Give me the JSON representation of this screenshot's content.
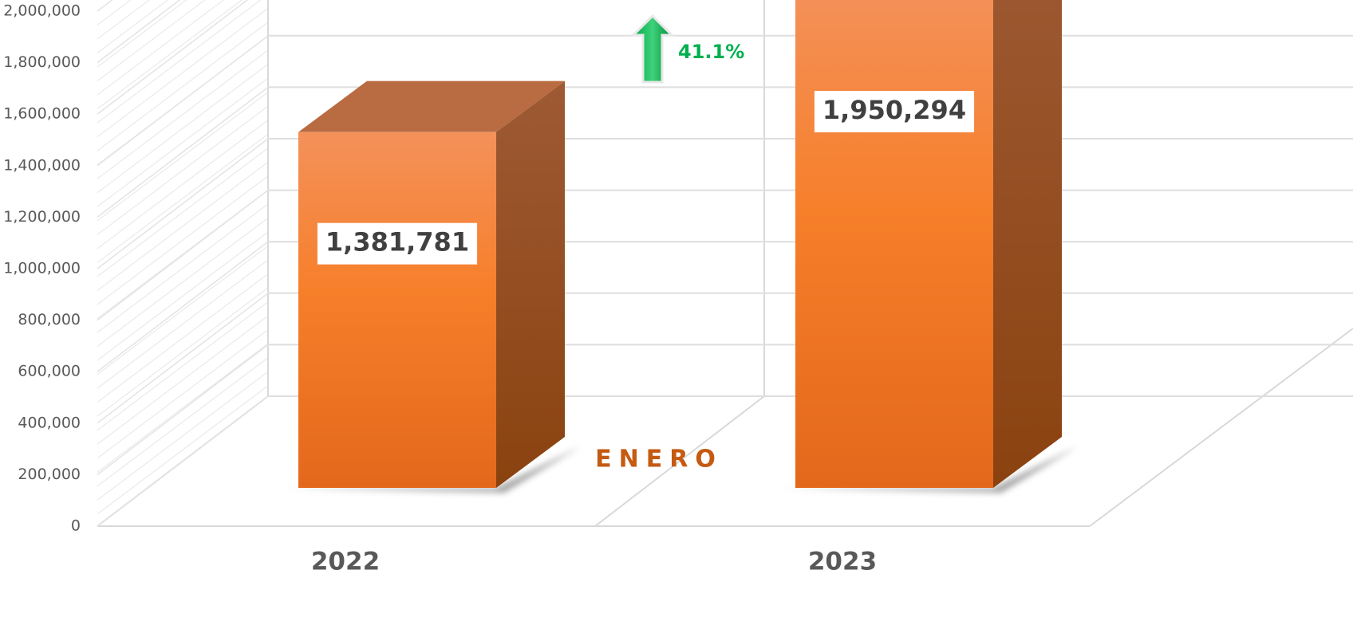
{
  "chart_data": {
    "type": "bar3d",
    "categories": [
      "2022",
      "2023"
    ],
    "values": [
      1381781,
      1950294
    ],
    "value_labels": [
      "1,381,781",
      "1,950,294"
    ],
    "color": "#f57f2a",
    "ylim": [
      0,
      2000000
    ],
    "yticks": [
      {
        "value": 0,
        "label": "0"
      },
      {
        "value": 200000,
        "label": "200,000"
      },
      {
        "value": 400000,
        "label": "400,000"
      },
      {
        "value": 600000,
        "label": "600,000"
      },
      {
        "value": 800000,
        "label": "800,000"
      },
      {
        "value": 1000000,
        "label": "1,000,000"
      },
      {
        "value": 1200000,
        "label": "1,200,000"
      },
      {
        "value": 1400000,
        "label": "1,400,000"
      },
      {
        "value": 1600000,
        "label": "1,600,000"
      },
      {
        "value": 1800000,
        "label": "1,800,000"
      },
      {
        "value": 2000000,
        "label": "2,000,000"
      }
    ],
    "grid": true,
    "annotations": {
      "change": "41.1%",
      "month": "ENERO"
    }
  }
}
